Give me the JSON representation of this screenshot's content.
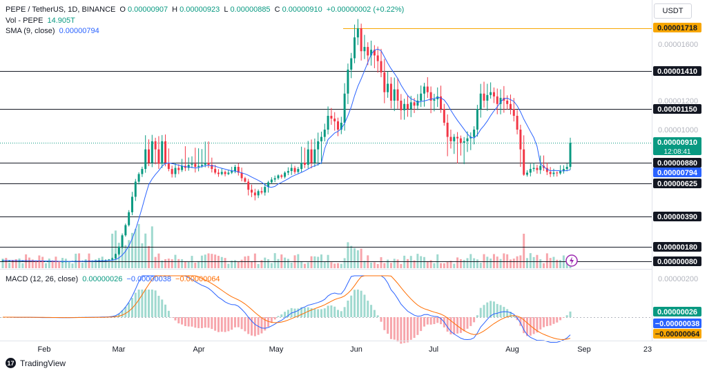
{
  "header": {
    "symbol": "PEPE / TetherUS, 1D, BINANCE",
    "open_label": "O",
    "open": "0.00000907",
    "high_label": "H",
    "high": "0.00000923",
    "low_label": "L",
    "low": "0.00000885",
    "close_label": "C",
    "close": "0.00000910",
    "change": "+0.00000002 (+0.22%)",
    "vol_label": "Vol - PEPE",
    "vol": "14.905T",
    "sma_label": "SMA (9, close)",
    "sma": "0.00000794"
  },
  "currency_button": "USDT",
  "macd": {
    "label": "MACD (12, 26, close)",
    "hist": "0.00000026",
    "macd_line": "−0.00000038",
    "signal": "−0.00000064",
    "colors": {
      "macd": "#2962ff",
      "signal": "#ff6d00",
      "hist_up": "#26a69a",
      "hist_down": "#ef5350"
    }
  },
  "branding": "TradingView",
  "chart_data": {
    "type": "candlestick",
    "price_axis_ticks": [
      "0.00001600",
      "0.00001200",
      "0.00001000"
    ],
    "price_tags": [
      {
        "text": "0.00001718",
        "value": 1.718e-05,
        "style": "orange"
      },
      {
        "text": "0.00001410",
        "value": 1.41e-05,
        "style": "black"
      },
      {
        "text": "0.00001150",
        "value": 1.15e-05,
        "style": "black"
      },
      {
        "text": "0.00000910",
        "value": 9.1e-06,
        "style": "green",
        "sub": "12:08:41"
      },
      {
        "text": "0.00000880",
        "value": 8.8e-06,
        "style": "black"
      },
      {
        "text": "0.00000794",
        "value": 7.94e-06,
        "style": "blue"
      },
      {
        "text": "0.00000625",
        "value": 6.25e-06,
        "style": "black"
      },
      {
        "text": "0.00000390",
        "value": 3.9e-06,
        "style": "black"
      },
      {
        "text": "0.00000180",
        "value": 1.8e-06,
        "style": "black"
      },
      {
        "text": "0.00000080",
        "value": 8e-07,
        "style": "black"
      }
    ],
    "horizontal_levels": [
      1.718e-05,
      1.41e-05,
      1.15e-05,
      8.8e-06,
      6.25e-06,
      3.9e-06,
      1.8e-06,
      8e-07
    ],
    "macd_axis_tick": "0.00000200",
    "macd_tags": [
      {
        "text": "0.00000026",
        "style": "green"
      },
      {
        "text": "−0.00000038",
        "style": "blue"
      },
      {
        "text": "−0.00000064",
        "style": "orange"
      }
    ],
    "x_axis_labels": [
      "Feb",
      "Mar",
      "Apr",
      "May",
      "Jun",
      "Jul",
      "Aug",
      "Sep",
      "23"
    ],
    "colors": {
      "up": "#089981",
      "down": "#f23645",
      "sma": "#2962ff",
      "level_orange": "#f7a600",
      "vol_up": "#9fd9cf",
      "vol_down": "#f7a5ab"
    },
    "closes": [
      8.6e-07,
      8.5e-07,
      8.5e-07,
      8.4e-07,
      8.3e-07,
      8.4e-07,
      8.5e-07,
      8.4e-07,
      8.3e-07,
      8.2e-07,
      8.1e-07,
      8e-07,
      7.9e-07,
      8e-07,
      8.1e-07,
      8e-07,
      7.9e-07,
      7.8e-07,
      7.8e-07,
      7.9e-07,
      8e-07,
      8.1e-07,
      8.2e-07,
      8.1e-07,
      8.2e-07,
      8.3e-07,
      8.2e-07,
      8.3e-07,
      8.4e-07,
      8.5e-07,
      8.6e-07,
      8.8e-07,
      9.2e-07,
      1e-06,
      1.3e-06,
      1.8e-06,
      2.6e-06,
      3.3e-06,
      4.2e-06,
      5.3e-06,
      6.5e-06,
      7.6e-06,
      8.2e-06,
      9e-06,
      8.8e-06,
      9.2e-06,
      9e-06,
      8.7e-06,
      9.2e-06,
      8.8e-06,
      8.2e-06,
      7.6e-06,
      8.3e-06,
      8.1e-06,
      8.5e-06,
      8.3e-06,
      8.6e-06,
      8.7e-06,
      8.4e-06,
      8.5e-06,
      8.6e-06,
      8.8e-06,
      8.6e-06,
      8.2e-06,
      7.8e-06,
      7.6e-06,
      7.9e-06,
      7.6e-06,
      7.8e-06,
      8e-06,
      8.4e-06,
      7.8e-06,
      7e-06,
      6.5e-06,
      5.8e-06,
      5.6e-06,
      5.4e-06,
      5.7e-06,
      5.6e-06,
      6e-06,
      6.4e-06,
      6.8e-06,
      7e-06,
      7.4e-06,
      7.2e-06,
      7.8e-06,
      8e-06,
      8.3e-06,
      7.9e-06,
      8.2e-06,
      8.8e-06,
      8.6e-06,
      9e-06,
      8.8e-06,
      9e-06,
      9.2e-06,
      9.5e-06,
      1e-05,
      1.1e-05,
      1.08e-05,
      1.06e-05,
      1e-05,
      1.05e-05,
      1.25e-05,
      1.42e-05,
      1.5e-05,
      1.65e-05,
      1.718e-05,
      1.55e-05,
      1.58e-05,
      1.52e-05,
      1.56e-05,
      1.52e-05,
      1.48e-05,
      1.4e-05,
      1.26e-05,
      1.32e-05,
      1.2e-05,
      1.28e-05,
      1.2e-05,
      1.14e-05,
      1.18e-05,
      1.15e-05,
      1.19e-05,
      1.17e-05,
      1.2e-05,
      1.25e-05,
      1.3e-05,
      1.26e-05,
      1.2e-05,
      1.21e-05,
      1.23e-05,
      1.15e-05,
      1.05e-05,
      9.5e-06,
      9.2e-06,
      9.5e-06,
      9.4e-06,
      9.1e-06,
      9.2e-06,
      9.4e-06,
      9.5e-06,
      1e-05,
      1.15e-05,
      1.25e-05,
      1.2e-05,
      1.24e-05,
      1.26e-05,
      1.23e-05,
      1.18e-05,
      1.22e-05,
      1.2e-05,
      1.18e-05,
      1.15e-05,
      1.1e-05,
      1e-05,
      9e-06,
      7.5e-06,
      7.8e-06,
      8.2e-06,
      8.3e-06,
      8.1e-06,
      8.5e-06,
      8.3e-06,
      7.9e-06,
      7.6e-06,
      7.8e-06,
      7.7e-06,
      8e-06,
      8.2e-06,
      8.4e-06,
      9.1e-06
    ]
  }
}
